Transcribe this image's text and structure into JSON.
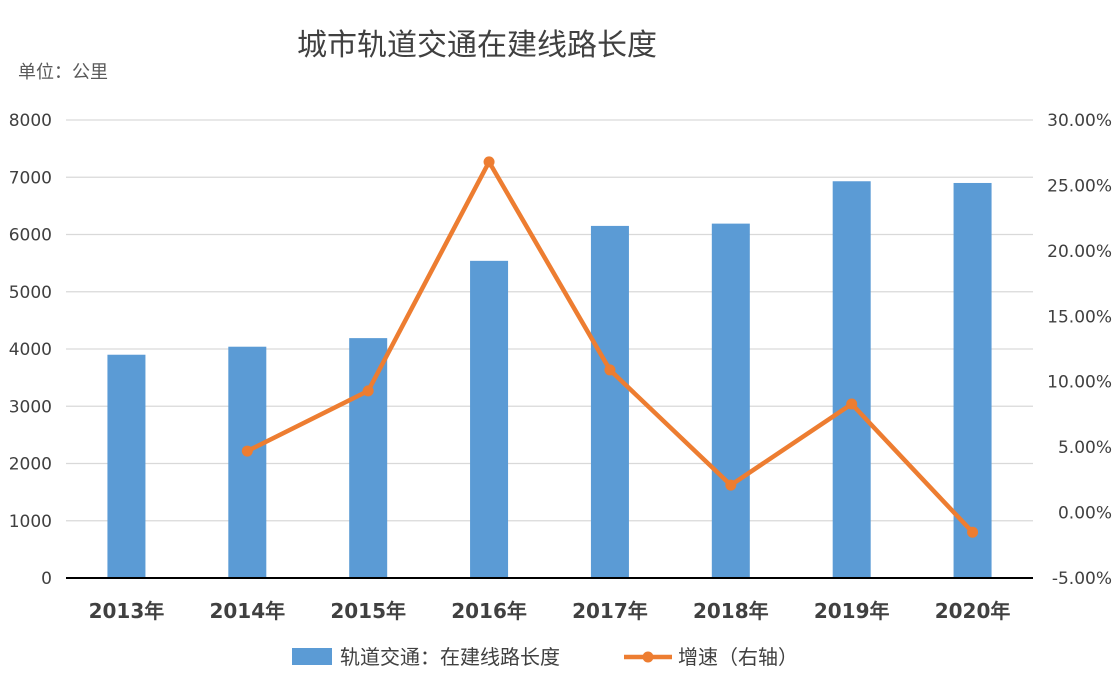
{
  "chart_data": {
    "type": "bar",
    "title": "城市轨道交通在建线路长度",
    "unit_label": "单位：公里",
    "categories": [
      "2013年",
      "2014年",
      "2015年",
      "2016年",
      "2017年",
      "2018年",
      "2019年",
      "2020年"
    ],
    "series": [
      {
        "name": "轨道交通：在建线路长度",
        "type": "bar",
        "axis": "left",
        "color": "#5B9BD5",
        "values": [
          3900,
          4040,
          4190,
          5540,
          6150,
          6190,
          6930,
          6900
        ]
      },
      {
        "name": "增速（右轴）",
        "type": "line",
        "axis": "right",
        "color": "#ED7D31",
        "values": [
          null,
          4.7,
          9.3,
          26.8,
          10.9,
          2.1,
          8.3,
          -1.5
        ]
      }
    ],
    "y_left": {
      "min": 0,
      "max": 8000,
      "step": 1000,
      "ticks": [
        "8000",
        "7000",
        "6000",
        "5000",
        "4000",
        "3000",
        "2000",
        "1000",
        "0"
      ]
    },
    "y_right": {
      "min": -5,
      "max": 30,
      "step": 5,
      "ticks": [
        "30.00%",
        "25.00%",
        "20.00%",
        "15.00%",
        "10.00%",
        "5.00%",
        "0.00%",
        "-5.00%"
      ]
    },
    "grid": true,
    "legend_position": "bottom"
  }
}
